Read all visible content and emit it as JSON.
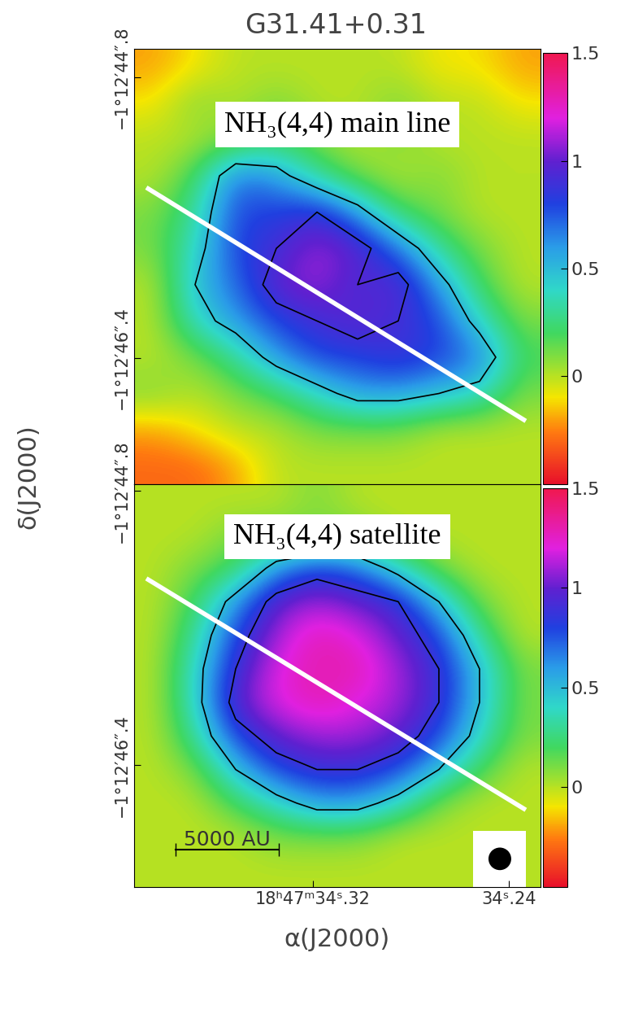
{
  "chart_data": [
    {
      "type": "heatmap",
      "title": "G31.41+0.31",
      "y_label": "δ(J2000)",
      "annotation": "NH₃(4,4) main line",
      "tick_labels": "y",
      "xlim": [
        34.393,
        34.227
      ],
      "ylim": [
        47.12,
        44.64
      ],
      "yticks": [
        {
          "value": 44.8,
          "label": "−1°12′44″.8"
        },
        {
          "value": 46.4,
          "label": "−1°12′46″.4"
        }
      ],
      "cells": [
        [
          -0.2,
          -0.1,
          0.0,
          0.0,
          0.0,
          0.0,
          0.0,
          -0.1,
          -0.1,
          -0.2
        ],
        [
          -0.1,
          0.1,
          0.0,
          0.1,
          0.0,
          0.0,
          0.1,
          0.0,
          0.0,
          -0.1
        ],
        [
          0.0,
          0.0,
          0.1,
          0.2,
          0.1,
          0.0,
          0.1,
          0.0,
          0.0,
          0.0
        ],
        [
          0.0,
          0.2,
          0.7,
          0.6,
          0.3,
          0.1,
          0.0,
          0.1,
          0.0,
          0.0
        ],
        [
          0.1,
          0.3,
          0.8,
          0.8,
          0.9,
          0.6,
          0.2,
          0.1,
          0.0,
          0.0
        ],
        [
          0.1,
          0.4,
          0.8,
          0.9,
          1.1,
          1.0,
          0.7,
          0.3,
          0.1,
          0.0
        ],
        [
          0.0,
          0.5,
          0.7,
          1.0,
          1.1,
          0.9,
          1.0,
          0.6,
          0.2,
          0.0
        ],
        [
          0.0,
          0.4,
          0.6,
          0.8,
          0.9,
          1.0,
          0.9,
          0.8,
          0.4,
          0.1
        ],
        [
          0.0,
          0.1,
          0.3,
          0.6,
          0.8,
          0.8,
          0.9,
          0.8,
          0.7,
          0.2
        ],
        [
          0.1,
          0.0,
          0.1,
          0.2,
          0.4,
          0.6,
          0.6,
          0.5,
          0.4,
          0.1
        ],
        [
          -0.2,
          -0.1,
          0.0,
          0.0,
          0.1,
          0.1,
          0.1,
          0.0,
          0.0,
          0.0
        ],
        [
          -0.3,
          -0.3,
          -0.2,
          0.0,
          0.0,
          0.0,
          0.0,
          0.0,
          0.0,
          0.0
        ]
      ],
      "contour_levels": [
        0.5,
        0.9
      ],
      "colorbar": {
        "range": [
          -0.5,
          1.5
        ],
        "ticks": [
          0,
          0.5,
          1,
          1.5
        ]
      },
      "line": {
        "x": [
          34.388,
          34.233
        ],
        "y": [
          45.43,
          46.76
        ],
        "color": "white"
      }
    },
    {
      "type": "heatmap",
      "x_label": "α(J2000)",
      "annotation": "NH₃(4,4) satellite",
      "xlim": [
        34.393,
        34.227
      ],
      "ylim": [
        47.11,
        44.76
      ],
      "xticks": [
        {
          "value": 34.32,
          "label": "18ʰ47ᵐ34ˢ.32"
        },
        {
          "value": 34.24,
          "label": "34ˢ.24"
        }
      ],
      "yticks": [
        {
          "value": 44.8,
          "label": "−1°12′44″.8"
        },
        {
          "value": 46.4,
          "label": "−1°12′46″.4"
        }
      ],
      "cells": [
        [
          0.0,
          0.0,
          0.0,
          0.0,
          0.1,
          0.0,
          0.0,
          0.0,
          0.0,
          0.0
        ],
        [
          0.0,
          0.0,
          0.1,
          0.1,
          0.1,
          0.1,
          0.0,
          0.0,
          0.0,
          0.0
        ],
        [
          0.0,
          0.1,
          0.2,
          0.6,
          0.8,
          0.7,
          0.4,
          0.1,
          0.0,
          0.0
        ],
        [
          0.0,
          0.2,
          0.6,
          1.0,
          1.1,
          1.0,
          0.9,
          0.5,
          0.1,
          0.0
        ],
        [
          0.0,
          0.3,
          0.8,
          1.1,
          1.3,
          1.2,
          1.0,
          0.8,
          0.3,
          0.0
        ],
        [
          0.0,
          0.4,
          0.9,
          1.2,
          1.3,
          1.3,
          1.1,
          0.9,
          0.5,
          0.1
        ],
        [
          0.0,
          0.4,
          1.0,
          1.2,
          1.3,
          1.2,
          1.1,
          0.9,
          0.5,
          0.1
        ],
        [
          0.0,
          0.3,
          0.8,
          1.0,
          1.1,
          1.1,
          1.0,
          0.8,
          0.4,
          0.1
        ],
        [
          0.0,
          0.1,
          0.5,
          0.8,
          0.9,
          0.9,
          0.8,
          0.5,
          0.2,
          0.0
        ],
        [
          0.0,
          0.0,
          0.2,
          0.4,
          0.6,
          0.6,
          0.4,
          0.1,
          0.0,
          0.0
        ],
        [
          0.0,
          0.0,
          0.0,
          0.1,
          0.1,
          0.1,
          0.0,
          0.0,
          0.0,
          0.0
        ],
        [
          0.0,
          0.0,
          0.0,
          0.0,
          0.0,
          0.0,
          0.0,
          0.0,
          0.0,
          0.0
        ]
      ],
      "contour_levels": [
        0.5,
        0.9
      ],
      "colorbar": {
        "range": [
          -0.5,
          1.5
        ],
        "ticks": [
          0,
          0.5,
          1,
          1.5
        ]
      },
      "line": {
        "x": [
          34.388,
          34.233
        ],
        "y": [
          45.31,
          46.66
        ],
        "color": "white"
      },
      "scale_bar": {
        "label": "5000 AU",
        "x": [
          34.376,
          34.334
        ],
        "y": 46.89
      }
    }
  ]
}
